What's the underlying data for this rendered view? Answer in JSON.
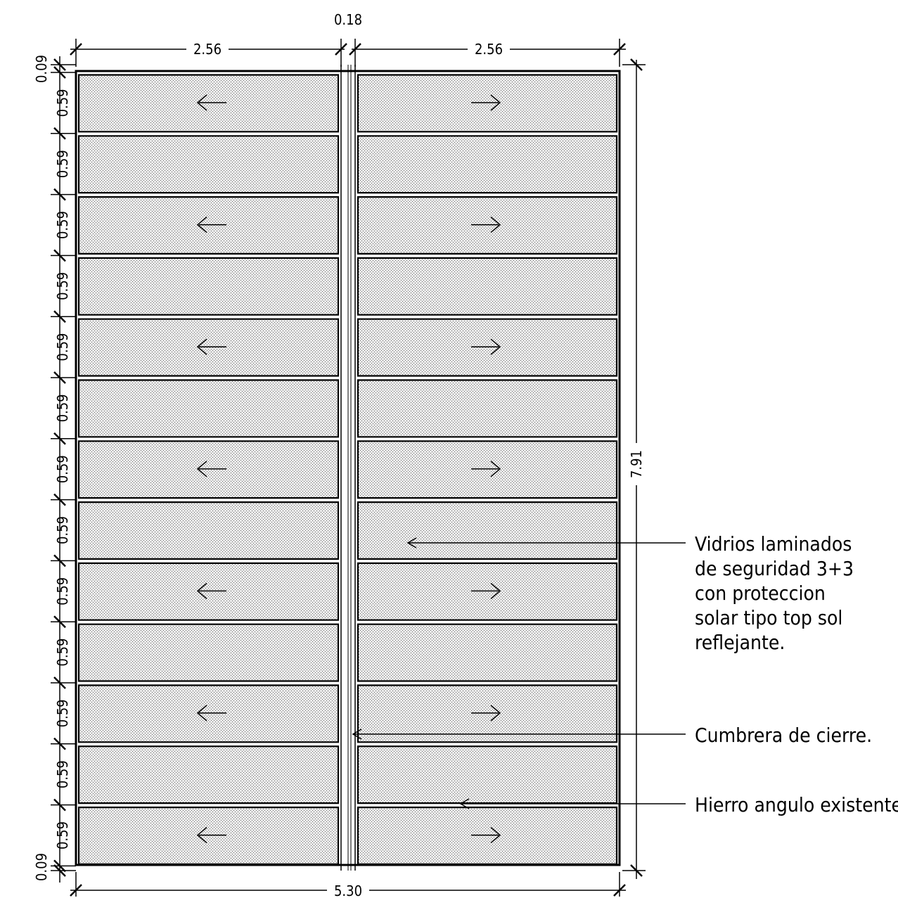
{
  "dimensions": {
    "gap": "0.18",
    "left_width": "2.56",
    "right_width": "2.56",
    "total_width": "5.30",
    "total_height": "7.91",
    "edge": "0.09",
    "row": "0.59",
    "row_count": 13
  },
  "annotations": {
    "glass": [
      "Vidrios laminados",
      "de seguridad 3+3",
      "con proteccion",
      "solar tipo top sol",
      "reflejante."
    ],
    "ridge": "Cumbrera de cierre.",
    "angle": "Hierro angulo existente."
  },
  "panel_arrows": {
    "left": "←",
    "right": "→",
    "rows_with_arrows": [
      0,
      2,
      4,
      6,
      8,
      10,
      12
    ]
  },
  "colors": {
    "line": "#000000",
    "glass_fill": "#e6e6e6",
    "stipple": "#555555"
  }
}
